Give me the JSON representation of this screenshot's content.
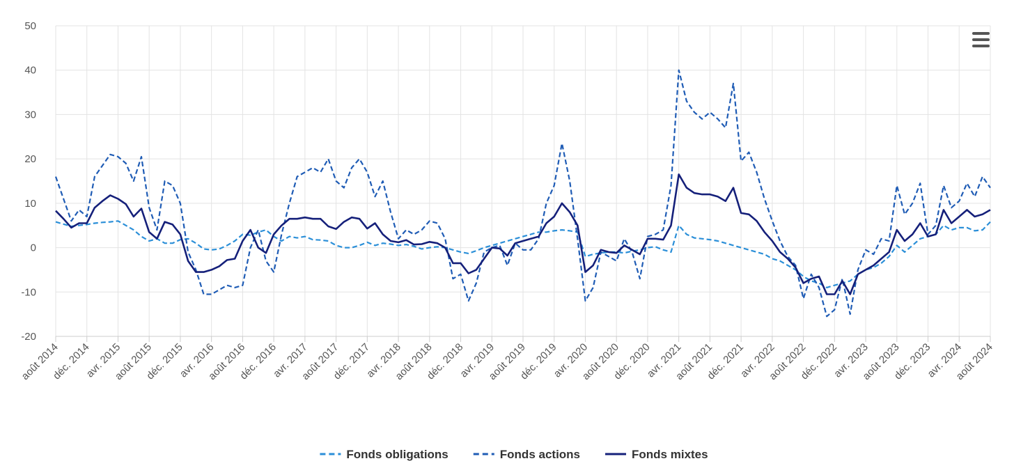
{
  "chart_data": {
    "type": "line",
    "categories": [
      "août 2014",
      null,
      null,
      null,
      "déc. 2014",
      null,
      null,
      null,
      "avr. 2015",
      null,
      null,
      null,
      "août 2015",
      null,
      null,
      null,
      "déc. 2015",
      null,
      null,
      null,
      "avr. 2016",
      null,
      null,
      null,
      "août 2016",
      null,
      null,
      null,
      "déc. 2016",
      null,
      null,
      null,
      "avr. 2017",
      null,
      null,
      null,
      "août 2017",
      null,
      null,
      null,
      "déc. 2017",
      null,
      null,
      null,
      "avr. 2018",
      null,
      null,
      null,
      "août 2018",
      null,
      null,
      null,
      "déc. 2018",
      null,
      null,
      null,
      "avr. 2019",
      null,
      null,
      null,
      "août 2019",
      null,
      null,
      null,
      "déc. 2019",
      null,
      null,
      null,
      "avr. 2020",
      null,
      null,
      null,
      "août 2020",
      null,
      null,
      null,
      "déc. 2020",
      null,
      null,
      null,
      "avr. 2021",
      null,
      null,
      null,
      "août 2021",
      null,
      null,
      null,
      "déc. 2021",
      null,
      null,
      null,
      "avr. 2022",
      null,
      null,
      null,
      "août 2022",
      null,
      null,
      null,
      "déc. 2022",
      null,
      null,
      null,
      "avr. 2023",
      null,
      null,
      null,
      "août 2023",
      null,
      null,
      null,
      "déc. 2023",
      null,
      null,
      null,
      "avr. 2024",
      null,
      null,
      null,
      "août 2024"
    ],
    "series": [
      {
        "name": "Fonds obligations",
        "color": "#2b8fd8",
        "dashed": true,
        "values": [
          5.8,
          5.3,
          4.8,
          5,
          5.2,
          5.5,
          5.7,
          5.8,
          6,
          5,
          4,
          2.5,
          1.5,
          2,
          1,
          1,
          1.8,
          2,
          1,
          -0.3,
          -0.5,
          -0.3,
          0.5,
          1.5,
          3,
          2.8,
          3.5,
          4,
          2.5,
          1.5,
          2.5,
          2.2,
          2.5,
          1.8,
          1.7,
          1.5,
          0.5,
          0,
          0,
          0.5,
          1.2,
          0.5,
          1,
          0.8,
          0.5,
          0.7,
          0.3,
          -0.3,
          0,
          0.2,
          0,
          -0.5,
          -1,
          -1.3,
          -0.7,
          0,
          0.5,
          1,
          1.5,
          2,
          2.5,
          3,
          3.5,
          3.5,
          3.8,
          4,
          3.8,
          3.5,
          -2,
          -1.5,
          -1.2,
          -1,
          -1,
          -1.2,
          -0.8,
          -0.5,
          0,
          0.2,
          -0.5,
          -1,
          5,
          3,
          2.2,
          2,
          1.8,
          1.5,
          1,
          0.5,
          0,
          -0.5,
          -1,
          -1.5,
          -2.5,
          -3,
          -4,
          -5,
          -6.5,
          -7.5,
          -8,
          -9,
          -8.5,
          -8,
          -7.5,
          -6,
          -5,
          -4.5,
          -3.5,
          -2,
          0.5,
          -1,
          0.5,
          2,
          2.5,
          3,
          5,
          4,
          4.5,
          4.5,
          3.8,
          4,
          5.8
        ]
      },
      {
        "name": "Fonds actions",
        "color": "#1f5cb5",
        "dashed": true,
        "values": [
          16,
          11,
          6,
          8.5,
          7,
          16,
          18.5,
          21,
          20.5,
          19,
          15,
          20.5,
          9,
          4,
          15,
          14,
          10,
          -1,
          -5,
          -10.5,
          -10.5,
          -9.5,
          -8.5,
          -9,
          -8.5,
          0,
          4,
          -3,
          -5.5,
          3,
          10,
          16,
          17,
          18,
          17,
          20,
          15,
          13.5,
          18,
          20,
          17,
          11.5,
          15,
          8,
          2,
          4,
          3,
          4,
          6,
          5.5,
          2,
          -7,
          -6,
          -12,
          -8,
          -1,
          0,
          0.5,
          -4,
          1,
          -0.5,
          -0.5,
          2,
          10,
          14,
          23.5,
          15,
          2,
          -12,
          -9,
          -1,
          -2,
          -3,
          2,
          -1,
          -7,
          2.5,
          3,
          4,
          14,
          40,
          33,
          30.5,
          29,
          30.5,
          29,
          27,
          37,
          19.5,
          21.5,
          17,
          11,
          6,
          1.5,
          -2,
          -4,
          -11.5,
          -6,
          -9,
          -15.5,
          -14,
          -7,
          -15,
          -5,
          -0.5,
          -1.5,
          2,
          1.5,
          14,
          7.5,
          10,
          14.5,
          3,
          5,
          14,
          9,
          10.5,
          14.5,
          11.5,
          16,
          13.5
        ]
      },
      {
        "name": "Fonds mixtes",
        "color": "#15207a",
        "dashed": false,
        "values": [
          8.3,
          6.5,
          4.5,
          5.5,
          5.5,
          9,
          10.5,
          11.8,
          11,
          9.8,
          7,
          8.8,
          3.5,
          2,
          5.8,
          5.2,
          3,
          -3,
          -5.5,
          -5.5,
          -5,
          -4.2,
          -2.8,
          -2.5,
          1.5,
          4,
          0,
          -1.2,
          3,
          5,
          6.5,
          6.5,
          6.8,
          6.5,
          6.5,
          4.8,
          4.2,
          5.8,
          6.8,
          6.5,
          4.3,
          5.5,
          3,
          1.5,
          1.2,
          1.7,
          0.7,
          0.8,
          1.3,
          1,
          0,
          -3.5,
          -3.5,
          -5.8,
          -5,
          -2.5,
          0,
          -0.2,
          -1.8,
          1,
          1.5,
          2,
          2.5,
          5.5,
          7,
          10,
          8,
          5,
          -5.5,
          -4,
          -0.5,
          -1,
          -1.2,
          0.5,
          -0.5,
          -1.5,
          2,
          2,
          1.8,
          5,
          16.5,
          13.5,
          12.3,
          12,
          12,
          11.5,
          10.5,
          13.5,
          7.8,
          7.5,
          6,
          3.5,
          1.5,
          -1,
          -2.5,
          -4.5,
          -8,
          -7,
          -6.5,
          -10.5,
          -10.5,
          -7.5,
          -10.5,
          -6,
          -5,
          -4,
          -2.5,
          -1,
          4,
          1.5,
          3,
          5.5,
          2.5,
          3,
          8.5,
          5.5,
          7,
          8.5,
          7,
          7.5,
          8.5
        ]
      }
    ],
    "ylim": [
      -20,
      50
    ],
    "yticks": [
      -20,
      -10,
      0,
      10,
      20,
      30,
      40,
      50
    ],
    "grid": true,
    "legend": "bottom"
  }
}
